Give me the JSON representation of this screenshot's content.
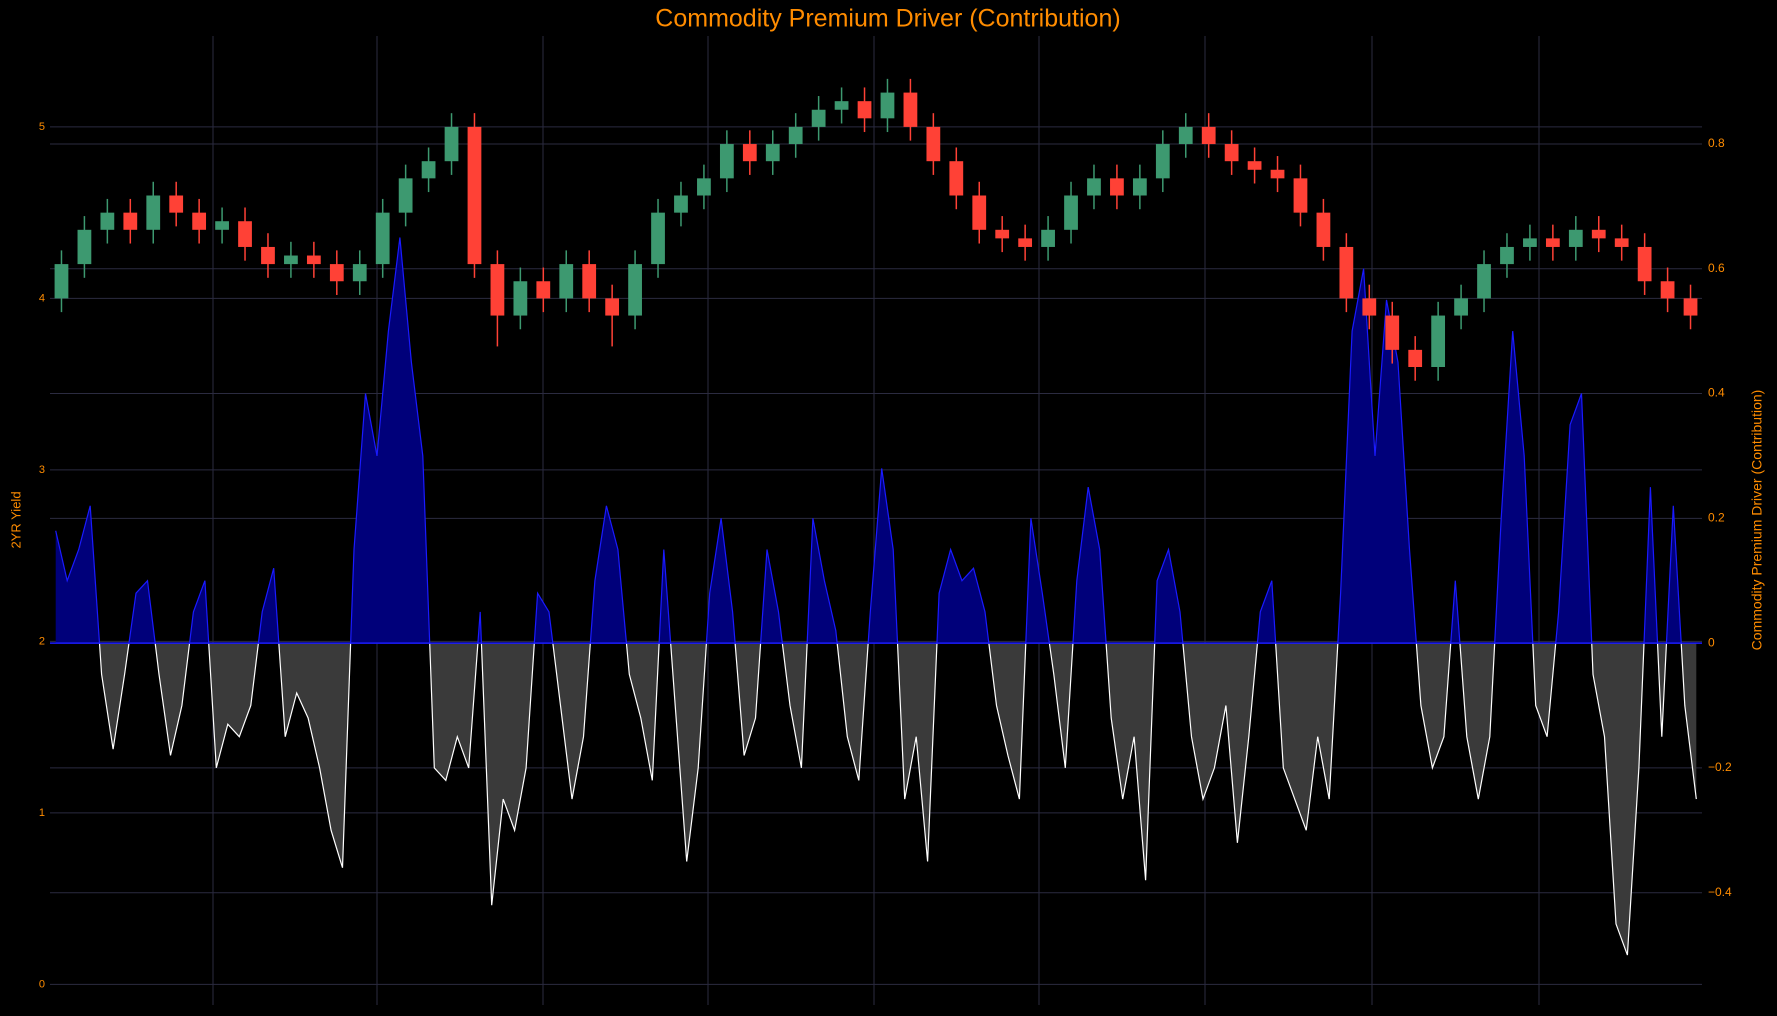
{
  "chart_data": {
    "type": "candlestick",
    "title": "Commodity Premium Driver (Contribution)",
    "ylabel": "2YR Yield",
    "y2label": "Commodity Premium Driver (Contribution)",
    "ylim": [
      -0.12,
      5.53
    ],
    "yticks": [
      0,
      1,
      2,
      3,
      4,
      5
    ],
    "y2lim": [
      -0.58,
      0.973
    ],
    "y2ticks": [
      {
        "value": -0.4,
        "label": "−0.4"
      },
      {
        "value": -0.2,
        "label": "−0.2"
      },
      0,
      0.2,
      0.4,
      0.6,
      0.8
    ],
    "grid": true,
    "increasing_color": "#3d9970",
    "decreasing_color": "#ff4136",
    "open": [
      4.0,
      4.2,
      4.4,
      4.5,
      4.4,
      4.6,
      4.5,
      4.4,
      4.45,
      4.3,
      4.2,
      4.25,
      4.2,
      4.1,
      4.2,
      4.5,
      4.7,
      4.8,
      5.0,
      4.2,
      3.9,
      4.1,
      4.0,
      4.2,
      4.0,
      3.9,
      4.2,
      4.5,
      4.6,
      4.7,
      4.9,
      4.8,
      4.9,
      5.0,
      5.1,
      5.15,
      5.05,
      5.2,
      5.0,
      4.8,
      4.6,
      4.4,
      4.35,
      4.3,
      4.4,
      4.6,
      4.7,
      4.6,
      4.7,
      4.9,
      5.0,
      4.9,
      4.8,
      4.75,
      4.7,
      4.5,
      4.3,
      4.0,
      3.9,
      3.7,
      3.6,
      3.9,
      4.0,
      4.2,
      4.3,
      4.35,
      4.3,
      4.4,
      4.35,
      4.3,
      4.1,
      4.0
    ],
    "high": [
      4.28,
      4.48,
      4.58,
      4.58,
      4.68,
      4.68,
      4.58,
      4.53,
      4.53,
      4.38,
      4.33,
      4.33,
      4.28,
      4.28,
      4.58,
      4.78,
      4.88,
      5.08,
      5.08,
      4.28,
      4.18,
      4.18,
      4.28,
      4.28,
      4.08,
      4.28,
      4.58,
      4.68,
      4.78,
      4.98,
      4.98,
      4.98,
      5.08,
      5.18,
      5.23,
      5.23,
      5.28,
      5.28,
      5.08,
      4.88,
      4.68,
      4.48,
      4.43,
      4.48,
      4.68,
      4.78,
      4.78,
      4.78,
      4.98,
      5.08,
      5.08,
      4.98,
      4.88,
      4.83,
      4.78,
      4.58,
      4.38,
      4.08,
      3.98,
      3.78,
      3.98,
      4.08,
      4.28,
      4.38,
      4.43,
      4.43,
      4.48,
      4.48,
      4.43,
      4.38,
      4.18,
      4.08
    ],
    "low": [
      3.92,
      4.12,
      4.32,
      4.32,
      4.32,
      4.42,
      4.32,
      4.32,
      4.22,
      4.12,
      4.12,
      4.12,
      4.02,
      4.02,
      4.12,
      4.42,
      4.62,
      4.72,
      4.12,
      3.72,
      3.82,
      3.92,
      3.92,
      3.92,
      3.72,
      3.82,
      4.12,
      4.42,
      4.52,
      4.62,
      4.72,
      4.72,
      4.82,
      4.92,
      5.02,
      4.97,
      4.97,
      4.92,
      4.72,
      4.52,
      4.32,
      4.27,
      4.22,
      4.22,
      4.32,
      4.52,
      4.52,
      4.52,
      4.62,
      4.82,
      4.82,
      4.72,
      4.67,
      4.62,
      4.42,
      4.22,
      3.92,
      3.82,
      3.62,
      3.52,
      3.52,
      3.82,
      3.92,
      4.12,
      4.22,
      4.22,
      4.22,
      4.27,
      4.22,
      4.02,
      3.92,
      3.82
    ],
    "close": [
      4.2,
      4.4,
      4.5,
      4.4,
      4.6,
      4.5,
      4.4,
      4.45,
      4.3,
      4.2,
      4.25,
      4.2,
      4.1,
      4.2,
      4.5,
      4.7,
      4.8,
      5.0,
      4.2,
      3.9,
      4.1,
      4.0,
      4.2,
      4.0,
      3.9,
      4.2,
      4.5,
      4.6,
      4.7,
      4.9,
      4.8,
      4.9,
      5.0,
      5.1,
      5.15,
      5.05,
      5.2,
      5.0,
      4.8,
      4.6,
      4.4,
      4.35,
      4.3,
      4.4,
      4.6,
      4.7,
      4.6,
      4.7,
      4.9,
      5.0,
      4.9,
      4.8,
      4.75,
      4.7,
      4.5,
      4.3,
      4.0,
      3.9,
      3.7,
      3.6,
      3.9,
      4.0,
      4.2,
      4.3,
      4.35,
      4.3,
      4.4,
      4.35,
      4.3,
      4.1,
      4.0,
      3.9
    ],
    "series": [
      {
        "type": "area",
        "axis": "y2",
        "color": "#1a1aff",
        "fill_color": "#00007a",
        "negative_color": "#ffffff",
        "negative_fill_color": "#3a3a3a",
        "values": [
          0.18,
          0.1,
          0.15,
          0.22,
          -0.05,
          -0.17,
          -0.05,
          0.08,
          0.1,
          -0.05,
          -0.18,
          -0.1,
          0.05,
          0.1,
          -0.2,
          -0.13,
          -0.15,
          -0.1,
          0.05,
          0.12,
          -0.15,
          -0.08,
          -0.12,
          -0.2,
          -0.3,
          -0.36,
          0.15,
          0.4,
          0.3,
          0.5,
          0.65,
          0.45,
          0.3,
          -0.2,
          -0.22,
          -0.15,
          -0.2,
          0.05,
          -0.42,
          -0.25,
          -0.3,
          -0.2,
          0.08,
          0.05,
          -0.1,
          -0.25,
          -0.15,
          0.1,
          0.22,
          0.15,
          -0.05,
          -0.12,
          -0.22,
          0.15,
          -0.1,
          -0.35,
          -0.2,
          0.08,
          0.2,
          0.05,
          -0.18,
          -0.12,
          0.15,
          0.05,
          -0.1,
          -0.2,
          0.2,
          0.1,
          0.02,
          -0.15,
          -0.22,
          0.05,
          0.28,
          0.15,
          -0.25,
          -0.15,
          -0.35,
          0.08,
          0.15,
          0.1,
          0.12,
          0.05,
          -0.1,
          -0.18,
          -0.25,
          0.2,
          0.08,
          -0.05,
          -0.2,
          0.1,
          0.25,
          0.15,
          -0.12,
          -0.25,
          -0.15,
          -0.38,
          0.1,
          0.15,
          0.05,
          -0.15,
          -0.25,
          -0.2,
          -0.1,
          -0.32,
          -0.15,
          0.05,
          0.1,
          -0.2,
          -0.25,
          -0.3,
          -0.15,
          -0.25,
          0.08,
          0.5,
          0.6,
          0.3,
          0.55,
          0.45,
          0.15,
          -0.1,
          -0.2,
          -0.15,
          0.1,
          -0.15,
          -0.25,
          -0.15,
          0.2,
          0.5,
          0.3,
          -0.1,
          -0.15,
          0.05,
          0.35,
          0.4,
          -0.05,
          -0.15,
          -0.45,
          -0.5,
          -0.2,
          0.25,
          -0.15,
          0.22,
          -0.1,
          -0.25
        ]
      }
    ]
  }
}
